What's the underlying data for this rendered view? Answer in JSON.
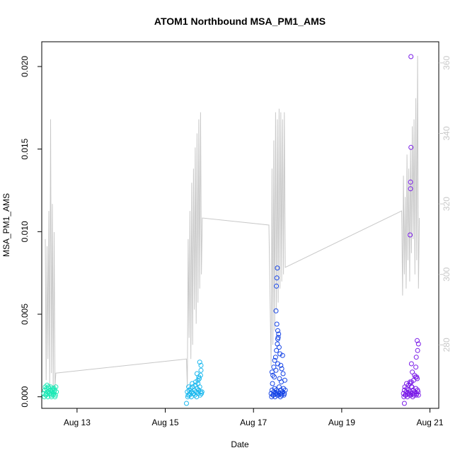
{
  "chart_data": {
    "type": "scatter",
    "title": "ATOM1 Northbound MSA_PM1_AMS",
    "xlabel": "Date",
    "ylabel": "MSA_PM1_AMS",
    "xlim": [
      12.2,
      21.2
    ],
    "ylim": [
      -0.0007,
      0.0215
    ],
    "y2lim": [
      262,
      366
    ],
    "x_ticks": [
      {
        "value": 13,
        "label": "Aug 13"
      },
      {
        "value": 15,
        "label": "Aug 15"
      },
      {
        "value": 17,
        "label": "Aug 17"
      },
      {
        "value": 19,
        "label": "Aug 19"
      },
      {
        "value": 21,
        "label": "Aug 21"
      }
    ],
    "y_ticks": [
      {
        "value": 0.0,
        "label": "0.000"
      },
      {
        "value": 0.005,
        "label": "0.005"
      },
      {
        "value": 0.01,
        "label": "0.010"
      },
      {
        "value": 0.015,
        "label": "0.015"
      },
      {
        "value": 0.02,
        "label": "0.020"
      }
    ],
    "y2_ticks": [
      {
        "value": 280,
        "label": "280"
      },
      {
        "value": 300,
        "label": "300"
      },
      {
        "value": 320,
        "label": "320"
      },
      {
        "value": 340,
        "label": "340"
      },
      {
        "value": 360,
        "label": "360"
      }
    ],
    "series": [
      {
        "name": "points-aug12",
        "color": "#1de9b6",
        "x": [
          12.25,
          12.27,
          12.29,
          12.31,
          12.33,
          12.35,
          12.37,
          12.39,
          12.41,
          12.43,
          12.45,
          12.47,
          12.49,
          12.51,
          12.53,
          12.26,
          12.3,
          12.34,
          12.38,
          12.42,
          12.46,
          12.5,
          12.28,
          12.32,
          12.36,
          12.4,
          12.44,
          12.48,
          12.52,
          12.3,
          12.36,
          12.42,
          12.48
        ],
        "y": [
          0.0002,
          0.0004,
          0.0001,
          0.0005,
          0.0003,
          0.0006,
          0.0002,
          0.0004,
          0.0001,
          0.0003,
          0.0005,
          0.0002,
          0.0004,
          0.0001,
          0.0003,
          0.0,
          0.0001,
          0.0,
          0.0002,
          0.0,
          0.0001,
          0.0,
          0.0006,
          0.0007,
          0.0005,
          0.0006,
          0.0004,
          0.0005,
          0.0006,
          0.0002,
          0.0003,
          0.0002,
          0.0003
        ]
      },
      {
        "name": "points-aug15",
        "color": "#1ab8ee",
        "x": [
          15.5,
          15.52,
          15.54,
          15.56,
          15.58,
          15.6,
          15.62,
          15.64,
          15.66,
          15.68,
          15.7,
          15.72,
          15.74,
          15.76,
          15.78,
          15.8,
          15.82,
          15.51,
          15.55,
          15.59,
          15.63,
          15.67,
          15.71,
          15.75,
          15.79,
          15.83,
          15.53,
          15.61,
          15.69,
          15.77,
          15.8,
          15.81,
          15.81,
          15.78,
          15.76,
          15.74,
          15.72,
          15.48
        ],
        "y": [
          0.0003,
          0.0001,
          0.0004,
          0.0002,
          0.0005,
          0.0003,
          0.0006,
          0.0002,
          0.0004,
          0.0007,
          0.0003,
          0.0005,
          0.0008,
          0.0004,
          0.0006,
          0.0003,
          0.0002,
          0.0,
          0.0001,
          0.0,
          0.0002,
          0.0001,
          0.0,
          0.0002,
          0.0001,
          0.0003,
          0.0006,
          0.0008,
          0.0009,
          0.0011,
          0.0013,
          0.0016,
          0.0019,
          0.0021,
          0.0012,
          0.001,
          0.0014,
          -0.0004
        ]
      },
      {
        "name": "points-aug17",
        "color": "#1443e6",
        "x": [
          17.4,
          17.42,
          17.44,
          17.46,
          17.48,
          17.5,
          17.52,
          17.54,
          17.56,
          17.58,
          17.6,
          17.62,
          17.64,
          17.66,
          17.68,
          17.7,
          17.72,
          17.41,
          17.45,
          17.49,
          17.53,
          17.57,
          17.61,
          17.65,
          17.69,
          17.43,
          17.47,
          17.51,
          17.55,
          17.59,
          17.63,
          17.67,
          17.71,
          17.5,
          17.52,
          17.54,
          17.56,
          17.58,
          17.6,
          17.48,
          17.46,
          17.62,
          17.64,
          17.66,
          17.44,
          17.42,
          17.55,
          17.53,
          17.57,
          17.51,
          17.52,
          17.53,
          17.54,
          17.55
        ],
        "y": [
          0.0002,
          0.0004,
          0.0001,
          0.0003,
          0.0005,
          0.0002,
          0.0004,
          0.0001,
          0.0003,
          0.0006,
          0.0002,
          0.0004,
          0.0001,
          0.0003,
          0.0005,
          0.0002,
          0.0004,
          0.0,
          0.0001,
          0.0,
          0.0002,
          0.0001,
          0.0,
          0.0002,
          0.0001,
          0.0008,
          0.0012,
          0.0016,
          0.002,
          0.0011,
          0.0009,
          0.0014,
          0.001,
          0.0024,
          0.0028,
          0.0032,
          0.0036,
          0.003,
          0.0026,
          0.0022,
          0.0018,
          0.0019,
          0.0017,
          0.0025,
          0.0013,
          0.0015,
          0.004,
          0.0044,
          0.0038,
          0.0052,
          0.0067,
          0.0072,
          0.0078,
          0.0035
        ]
      },
      {
        "name": "points-aug20",
        "color": "#7a1be8",
        "x": [
          20.4,
          20.42,
          20.44,
          20.46,
          20.48,
          20.5,
          20.52,
          20.54,
          20.56,
          20.58,
          20.6,
          20.62,
          20.64,
          20.66,
          20.68,
          20.7,
          20.72,
          20.74,
          20.41,
          20.45,
          20.49,
          20.53,
          20.57,
          20.61,
          20.65,
          20.69,
          20.73,
          20.43,
          20.47,
          20.51,
          20.55,
          20.59,
          20.63,
          20.67,
          20.71,
          20.55,
          20.6,
          20.65,
          20.7,
          20.72,
          20.74,
          20.71,
          20.69,
          20.68,
          20.58,
          20.55,
          20.56,
          20.56,
          20.57,
          20.57,
          20.58,
          20.42
        ],
        "y": [
          0.0002,
          0.0004,
          0.0001,
          0.0003,
          0.0005,
          0.0002,
          0.0004,
          0.0001,
          0.0003,
          0.0006,
          0.0002,
          0.0004,
          0.0001,
          0.0003,
          0.0005,
          0.0002,
          0.0004,
          0.0001,
          0.0,
          0.0001,
          0.0,
          0.0002,
          0.0001,
          0.0,
          0.0002,
          0.0001,
          0.0003,
          0.0006,
          0.0008,
          0.0007,
          0.0009,
          0.0006,
          0.001,
          0.0012,
          0.0011,
          0.0008,
          0.0015,
          0.0013,
          0.0012,
          0.0028,
          0.0032,
          0.0034,
          0.0024,
          0.0018,
          0.002,
          0.0098,
          0.0126,
          0.013,
          0.0151,
          0.0206,
          0.0009,
          -0.0004
        ]
      }
    ],
    "line_series": {
      "name": "secondary-axis-line",
      "color": "#c8c8c8",
      "axis": "right",
      "x": [
        12.28,
        12.3,
        12.32,
        12.34,
        12.36,
        12.38,
        12.4,
        12.42,
        12.44,
        12.46,
        12.48,
        12.5,
        12.52,
        15.48,
        15.5,
        15.52,
        15.54,
        15.56,
        15.58,
        15.6,
        15.62,
        15.64,
        15.66,
        15.68,
        15.7,
        15.72,
        15.74,
        15.76,
        15.78,
        15.8,
        15.82,
        15.84,
        17.35,
        17.4,
        17.42,
        17.44,
        17.46,
        17.48,
        17.5,
        17.52,
        17.54,
        17.56,
        17.58,
        17.6,
        17.62,
        17.64,
        17.66,
        17.68,
        17.7,
        17.72,
        20.36,
        20.38,
        20.4,
        20.42,
        20.44,
        20.46,
        20.48,
        20.5,
        20.52,
        20.54,
        20.56,
        20.58,
        20.6,
        20.62,
        20.64,
        20.66,
        20.68,
        20.7,
        20.72,
        20.74,
        20.76
      ],
      "y": [
        310,
        270,
        308,
        276,
        318,
        268,
        344,
        272,
        320,
        266,
        312,
        268,
        272,
        276,
        268,
        310,
        282,
        318,
        276,
        326,
        280,
        330,
        290,
        336,
        286,
        340,
        292,
        344,
        296,
        346,
        300,
        316,
        314,
        274,
        330,
        280,
        338,
        284,
        346,
        290,
        344,
        292,
        347,
        296,
        346,
        298,
        344,
        300,
        346,
        302,
        318,
        294,
        328,
        300,
        322,
        296,
        334,
        304,
        330,
        298,
        336,
        306,
        342,
        310,
        344,
        300,
        350,
        304,
        362,
        296,
        316
      ]
    }
  }
}
